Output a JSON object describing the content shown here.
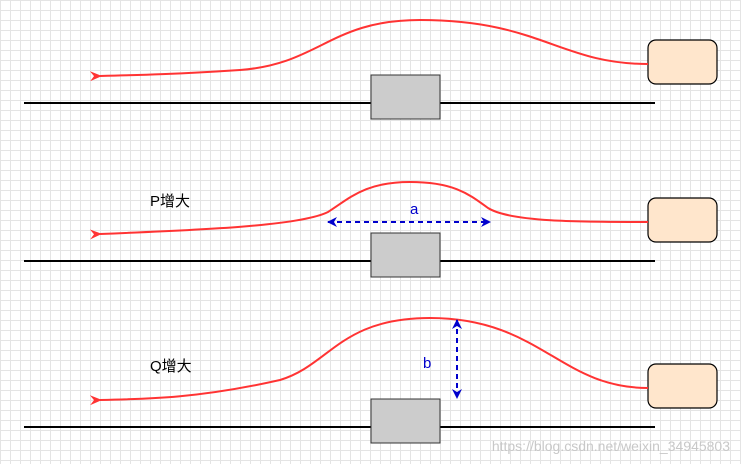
{
  "colors": {
    "flow_line": "#ff3333",
    "dimension": "#0000cc",
    "source_box_fill": "#ffe6cc",
    "obstacle_fill": "#cccccc",
    "ground_line": "#000000",
    "grid": "#e4e4e4"
  },
  "panels": [
    {
      "label": ""
    },
    {
      "label": "P增大",
      "dimension_label": "a"
    },
    {
      "label": "Q增大",
      "dimension_label": "b"
    }
  ],
  "watermark": "https://blog.csdn.net/weixin_34945803"
}
